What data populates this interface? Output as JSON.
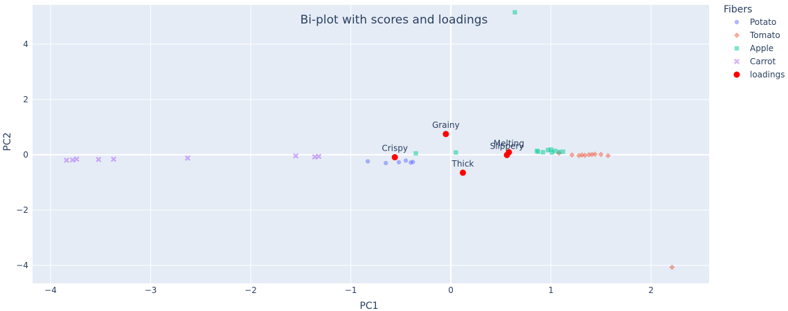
{
  "chart_data": {
    "type": "scatter",
    "title": "Bi-plot with scores and loadings",
    "xlabel": "PC1",
    "ylabel": "PC2",
    "xlim": [
      -4.18,
      2.58
    ],
    "ylim": [
      -4.65,
      5.42
    ],
    "x_ticks": [
      -4,
      -3,
      -2,
      -1,
      0,
      1,
      2
    ],
    "y_ticks": [
      -4,
      -2,
      0,
      2,
      4
    ],
    "x_tick_labels": [
      "−4",
      "−3",
      "−2",
      "−1",
      "0",
      "1",
      "2"
    ],
    "y_tick_labels": [
      "−4",
      "−2",
      "0",
      "2",
      "4"
    ],
    "grid": true,
    "legend_title": "Fibers",
    "legend_position": "right",
    "colors": {
      "background": "#e5ecf6",
      "grid": "#ffffff",
      "text": "#2a3f5f"
    },
    "series": [
      {
        "name": "Potato",
        "marker": "circle",
        "color": "#636efa",
        "opacity": 0.5,
        "points": [
          [
            -0.83,
            -0.24
          ],
          [
            -0.65,
            -0.3
          ],
          [
            -0.52,
            -0.27
          ],
          [
            -0.45,
            -0.21
          ],
          [
            -0.4,
            -0.28
          ],
          [
            -0.38,
            -0.26
          ]
        ]
      },
      {
        "name": "Tomato",
        "marker": "diamond",
        "color": "#ef553b",
        "opacity": 0.5,
        "points": [
          [
            1.08,
            0.06
          ],
          [
            1.21,
            -0.01
          ],
          [
            1.28,
            -0.03
          ],
          [
            1.31,
            -0.01
          ],
          [
            1.34,
            -0.02
          ],
          [
            1.38,
            0.0
          ],
          [
            1.41,
            0.01
          ],
          [
            1.44,
            0.02
          ],
          [
            1.5,
            0.01
          ],
          [
            1.57,
            -0.03
          ],
          [
            2.21,
            -4.07
          ]
        ]
      },
      {
        "name": "Apple",
        "marker": "square",
        "color": "#00cc96",
        "opacity": 0.5,
        "points": [
          [
            0.64,
            5.15
          ],
          [
            -0.35,
            0.05
          ],
          [
            0.05,
            0.08
          ],
          [
            0.86,
            0.14
          ],
          [
            0.87,
            0.11
          ],
          [
            0.92,
            0.09
          ],
          [
            0.97,
            0.17
          ],
          [
            1.0,
            0.19
          ],
          [
            1.01,
            0.08
          ],
          [
            1.04,
            0.14
          ],
          [
            1.08,
            0.1
          ],
          [
            1.12,
            0.11
          ]
        ]
      },
      {
        "name": "Carrot",
        "marker": "x",
        "color": "#ab63fa",
        "opacity": 0.5,
        "points": [
          [
            -3.84,
            -0.2
          ],
          [
            -3.78,
            -0.19
          ],
          [
            -3.74,
            -0.16
          ],
          [
            -3.52,
            -0.17
          ],
          [
            -3.37,
            -0.16
          ],
          [
            -2.63,
            -0.12
          ],
          [
            -1.55,
            -0.04
          ],
          [
            -1.36,
            -0.08
          ],
          [
            -1.32,
            -0.06
          ]
        ]
      },
      {
        "name": "loadings",
        "marker": "circle",
        "color": "#ff0000",
        "opacity": 1,
        "points": [
          [
            -0.56,
            -0.09
          ],
          [
            -0.05,
            0.75
          ],
          [
            0.12,
            -0.65
          ],
          [
            0.58,
            0.09
          ],
          [
            0.56,
            -0.01
          ]
        ],
        "labels": [
          "Crispy",
          "Grainy",
          "Thick",
          "Melting",
          "Slippery"
        ],
        "label_pos": [
          "top",
          "top",
          "top",
          "top",
          "top"
        ]
      }
    ]
  }
}
